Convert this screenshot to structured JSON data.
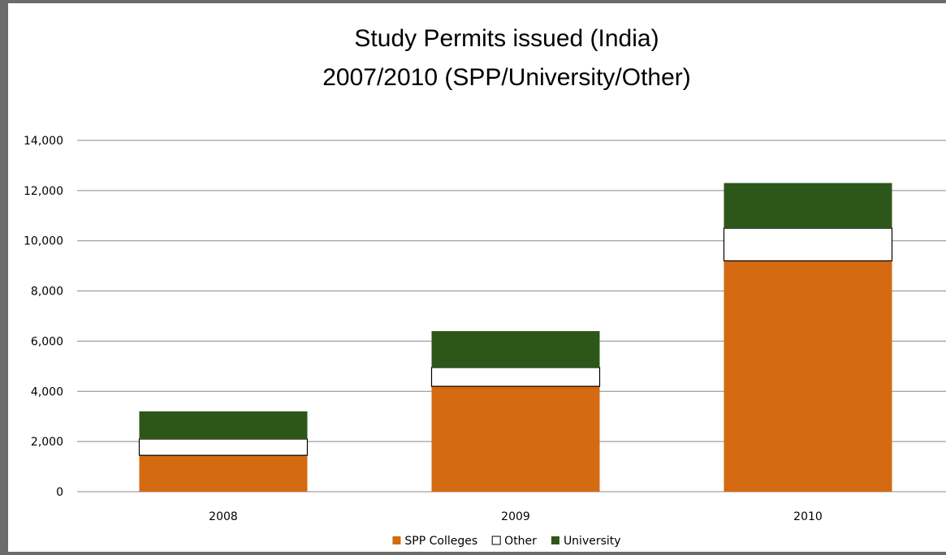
{
  "chart_data": {
    "type": "bar",
    "stacked": true,
    "title": "Study Permits issued (India)",
    "subtitle": "2007/2010 (SPP/University/Other)",
    "categories": [
      "2008",
      "2009",
      "2010"
    ],
    "series": [
      {
        "name": "SPP Colleges",
        "color": "#d46a11",
        "values": [
          1450,
          4200,
          9200
        ]
      },
      {
        "name": "Other",
        "color": "#ffffff",
        "values": [
          650,
          750,
          1300
        ]
      },
      {
        "name": "University",
        "color": "#2d5719",
        "values": [
          1100,
          1450,
          1800
        ]
      }
    ],
    "ylim": [
      0,
      14000
    ],
    "yticks": [
      0,
      2000,
      4000,
      6000,
      8000,
      10000,
      12000,
      14000
    ],
    "ytick_labels": [
      "0",
      "2,000",
      "4,000",
      "6,000",
      "8,000",
      "10,000",
      "12,000",
      "14,000"
    ],
    "xlabel": "",
    "ylabel": "",
    "grid": true,
    "legend_position": "bottom"
  }
}
